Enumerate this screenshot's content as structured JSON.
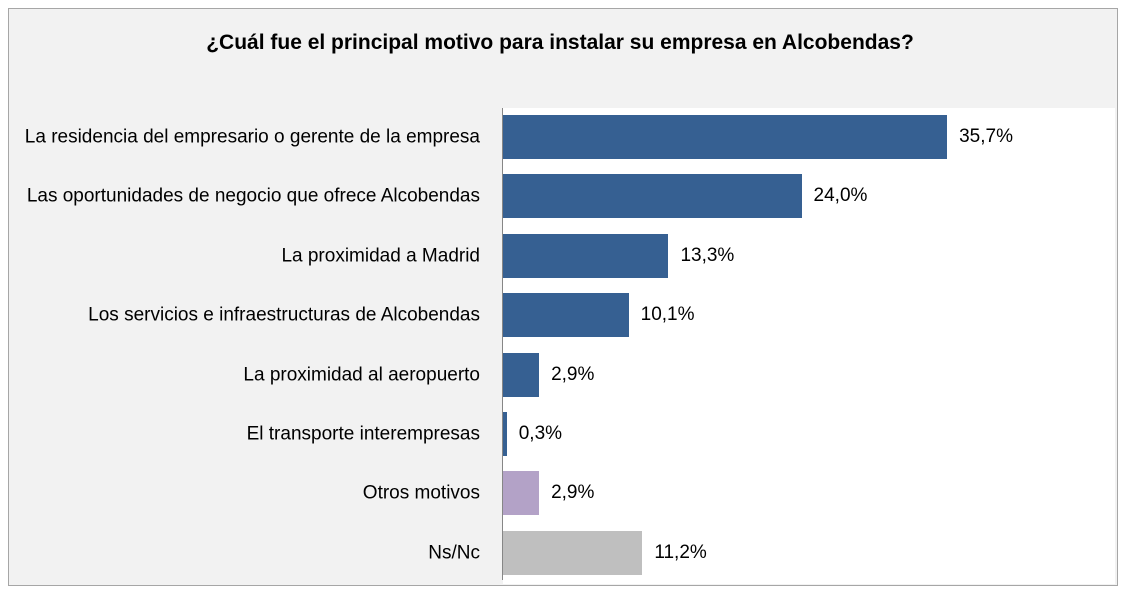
{
  "chart_data": {
    "type": "bar",
    "orientation": "horizontal",
    "title": "¿Cuál fue el principal motivo para instalar su empresa en Alcobendas?",
    "categories": [
      "La residencia del empresario o gerente de la empresa",
      "Las oportunidades de negocio que ofrece Alcobendas",
      "La proximidad a Madrid",
      "Los servicios e infraestructuras de Alcobendas",
      "La proximidad al aeropuerto",
      "El transporte interempresas",
      "Otros motivos",
      "Ns/Nc"
    ],
    "values": [
      35.7,
      24.0,
      13.3,
      10.1,
      2.9,
      0.3,
      2.9,
      11.2
    ],
    "value_labels": [
      "35,7%",
      "24,0%",
      "13,3%",
      "10,1%",
      "2,9%",
      "0,3%",
      "2,9%",
      "11,2%"
    ],
    "colors": [
      "#366092",
      "#366092",
      "#366092",
      "#366092",
      "#366092",
      "#366092",
      "#b3a2c7",
      "#bfbfbf"
    ]
  }
}
